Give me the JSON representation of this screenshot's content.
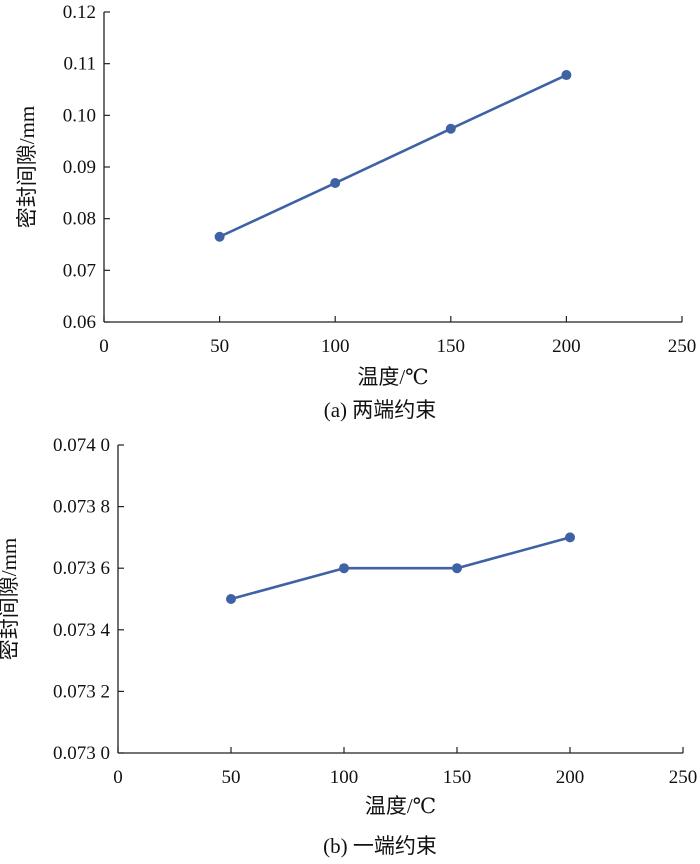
{
  "colors": {
    "line": "#3f62a4",
    "axis": "#222222",
    "text": "#111111",
    "background": "#ffffff"
  },
  "chart_data": [
    {
      "type": "line",
      "caption": "(a) 两端约束",
      "xlabel": "温度/℃",
      "ylabel": "密封间隙/mm",
      "xlim": [
        0,
        250
      ],
      "ylim": [
        0.06,
        0.12
      ],
      "xticks": [
        0,
        50,
        100,
        150,
        200,
        250
      ],
      "xtick_labels": [
        "0",
        "50",
        "100",
        "150",
        "200",
        "250"
      ],
      "yticks": [
        0.06,
        0.07,
        0.08,
        0.09,
        0.1,
        0.11,
        0.12
      ],
      "ytick_labels": [
        "0.06",
        "0.07",
        "0.08",
        "0.09",
        "0.10",
        "0.11",
        "0.12"
      ],
      "grid": false,
      "legend": "none",
      "marker": "circle",
      "series": [
        {
          "x": [
            50,
            100,
            150,
            200
          ],
          "values": [
            0.0765,
            0.0869,
            0.0974,
            0.1078
          ]
        }
      ]
    },
    {
      "type": "line",
      "caption": "(b) 一端约束",
      "xlabel": "温度/℃",
      "ylabel": "密封间隙/mm",
      "xlim": [
        0,
        250
      ],
      "ylim": [
        0.073,
        0.074
      ],
      "xticks": [
        0,
        50,
        100,
        150,
        200,
        250
      ],
      "xtick_labels": [
        "0",
        "50",
        "100",
        "150",
        "200",
        "250"
      ],
      "yticks": [
        0.073,
        0.0732,
        0.0734,
        0.0736,
        0.0738,
        0.074
      ],
      "ytick_labels": [
        "0.073 0",
        "0.073 2",
        "0.073 4",
        "0.073 6",
        "0.073 8",
        "0.074 0"
      ],
      "grid": false,
      "legend": "none",
      "marker": "circle",
      "series": [
        {
          "x": [
            50,
            100,
            150,
            200
          ],
          "values": [
            0.0735,
            0.0736,
            0.0736,
            0.0737
          ]
        }
      ]
    }
  ]
}
